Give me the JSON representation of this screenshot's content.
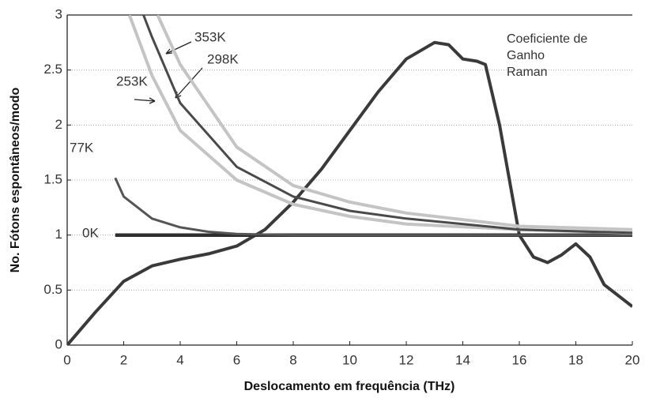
{
  "chart_data": {
    "type": "line",
    "xlabel": "Deslocamento em frequência (THz)",
    "ylabel": "No. Fótons espontâneos/modo",
    "xlim": [
      0,
      20
    ],
    "ylim": [
      0,
      3
    ],
    "xticks": [
      0,
      2,
      4,
      6,
      8,
      10,
      12,
      14,
      16,
      18,
      20
    ],
    "yticks": [
      0,
      0.5,
      1,
      1.5,
      2,
      2.5,
      3
    ],
    "grid": true,
    "annotations": [
      "Coeficiente de",
      "Ganho",
      "Raman"
    ],
    "series": [
      {
        "color": "#3a3a3a",
        "x": [
          0,
          1,
          2,
          3,
          4,
          5,
          6,
          7,
          8,
          9,
          10,
          11,
          12,
          13,
          13.5,
          14,
          14.5,
          14.8,
          15.3,
          16,
          16.5,
          17,
          17.5,
          18,
          18.5,
          19,
          20
        ],
        "values": [
          0,
          0.3,
          0.58,
          0.72,
          0.78,
          0.83,
          0.9,
          1.05,
          1.3,
          1.6,
          1.95,
          2.3,
          2.6,
          2.75,
          2.73,
          2.6,
          2.58,
          2.55,
          2.0,
          1.0,
          0.8,
          0.75,
          0.82,
          0.92,
          0.8,
          0.55,
          0.35
        ]
      },
      {
        "name": "0K",
        "color": "#2e2e2e",
        "x": [
          1.7,
          20
        ],
        "values": [
          1,
          1
        ]
      },
      {
        "name": "77K",
        "color": "#555555",
        "x": [
          1.7,
          2,
          3,
          4,
          5,
          6,
          8,
          12,
          20
        ],
        "values": [
          1.52,
          1.35,
          1.15,
          1.07,
          1.03,
          1.01,
          1,
          1,
          1
        ]
      },
      {
        "name": "253K",
        "color": "#c4c4c4",
        "x": [
          2.2,
          3,
          4,
          6,
          8,
          10,
          12,
          16,
          20
        ],
        "values": [
          3,
          2.45,
          1.95,
          1.5,
          1.28,
          1.17,
          1.1,
          1.05,
          1.02
        ]
      },
      {
        "name": "298K",
        "color": "#4a4a4a",
        "x": [
          2.7,
          3,
          4,
          6,
          8,
          10,
          12,
          16,
          20
        ],
        "values": [
          3,
          2.8,
          2.2,
          1.62,
          1.35,
          1.22,
          1.15,
          1.05,
          1.02
        ]
      },
      {
        "name": "353K",
        "color": "#c4c4c4",
        "x": [
          3.2,
          4,
          6,
          8,
          10,
          12,
          16,
          20
        ],
        "values": [
          3,
          2.55,
          1.8,
          1.45,
          1.3,
          1.2,
          1.08,
          1.05
        ]
      }
    ]
  }
}
